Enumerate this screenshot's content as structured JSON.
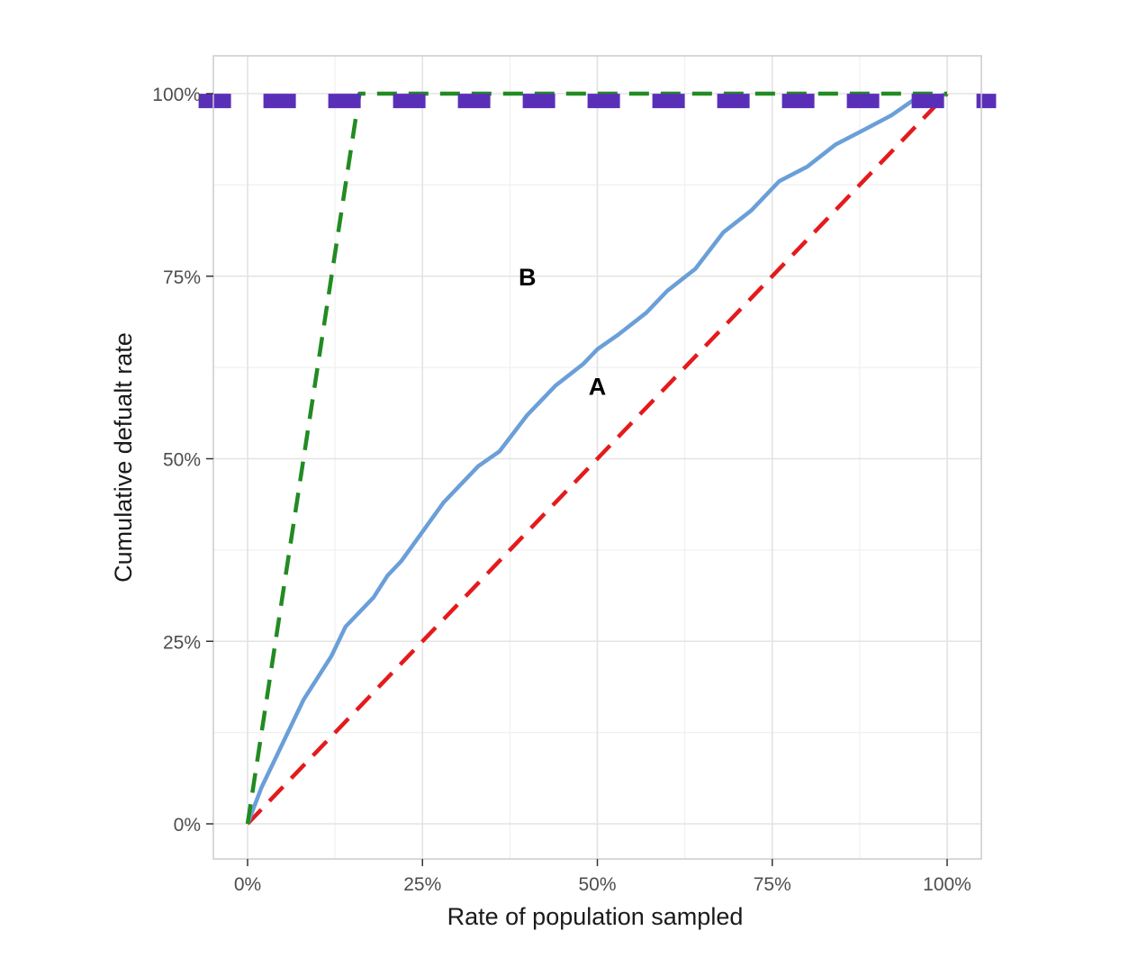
{
  "chart_data": {
    "type": "line",
    "xlabel": "Rate of population sampled",
    "ylabel": "Cumulative defualt rate",
    "xlim": [
      -0.05,
      1.05
    ],
    "ylim": [
      -0.05,
      1.05
    ],
    "x_ticks": [
      0,
      0.25,
      0.5,
      0.75,
      1
    ],
    "x_tick_labels": [
      "0%",
      "25%",
      "50%",
      "75%",
      "100%"
    ],
    "y_ticks": [
      0,
      0.25,
      0.5,
      0.75,
      1
    ],
    "y_tick_labels": [
      "0%",
      "25%",
      "50%",
      "75%",
      "100%"
    ],
    "grid": true,
    "legend": "none",
    "series": [
      {
        "color": "#e41a1c",
        "style": "dashed",
        "x": [
          0,
          1
        ],
        "y": [
          0,
          1
        ]
      },
      {
        "color": "#228b22",
        "style": "dashed",
        "x": [
          0,
          0.16,
          1
        ],
        "y": [
          0,
          1,
          1
        ]
      },
      {
        "color": "#5a2fb8",
        "style": "dashed",
        "x": [
          -0.07,
          1.07
        ],
        "y": [
          0.99,
          0.99
        ]
      },
      {
        "color": "#6a9fd8",
        "style": "solid",
        "x": [
          0,
          0.02,
          0.04,
          0.06,
          0.08,
          0.1,
          0.12,
          0.14,
          0.16,
          0.18,
          0.2,
          0.22,
          0.25,
          0.28,
          0.3,
          0.33,
          0.36,
          0.4,
          0.44,
          0.48,
          0.5,
          0.53,
          0.57,
          0.6,
          0.64,
          0.68,
          0.72,
          0.76,
          0.8,
          0.84,
          0.88,
          0.92,
          0.95,
          0.97,
          1
        ],
        "y": [
          0,
          0.05,
          0.09,
          0.13,
          0.17,
          0.2,
          0.23,
          0.27,
          0.29,
          0.31,
          0.34,
          0.36,
          0.4,
          0.44,
          0.46,
          0.49,
          0.51,
          0.56,
          0.6,
          0.63,
          0.65,
          0.67,
          0.7,
          0.73,
          0.76,
          0.81,
          0.84,
          0.88,
          0.9,
          0.93,
          0.95,
          0.97,
          0.99,
          0.99,
          1
        ]
      }
    ],
    "annotations": [
      {
        "text": "B",
        "x": 0.4,
        "y": 0.75
      },
      {
        "text": "A",
        "x": 0.5,
        "y": 0.6
      }
    ]
  }
}
